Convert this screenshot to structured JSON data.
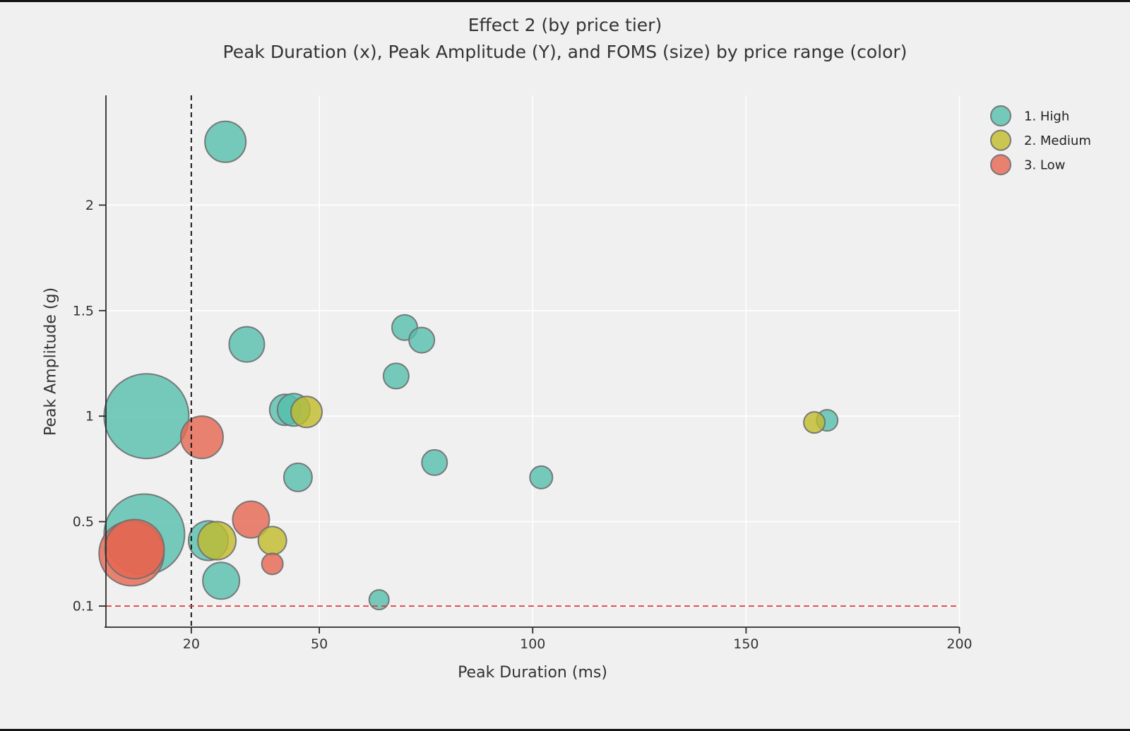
{
  "title": "Effect 2 (by price tier)",
  "subtitle": "Peak Duration (x), Peak Amplitude (Y), and FOMS (size) by price range (color)",
  "chart_data": {
    "type": "scatter",
    "variant": "bubble",
    "title": "Effect 2 (by price tier)",
    "subtitle": "Peak Duration (x), Peak Amplitude (Y), and FOMS (size) by price range (color)",
    "xlabel": "Peak Duration (ms)",
    "ylabel": "Peak Amplitude (g)",
    "size_dimension": "FOMS",
    "xlim": [
      0,
      200
    ],
    "ylim": [
      0,
      2.52
    ],
    "grid": true,
    "grid_color": "#ffffff",
    "legend_position": "top-right-outside",
    "x_ticks": [
      {
        "value": 20,
        "label": "20"
      },
      {
        "value": 50,
        "label": "50"
      },
      {
        "value": 100,
        "label": "100"
      },
      {
        "value": 150,
        "label": "150"
      },
      {
        "value": 200,
        "label": "200"
      }
    ],
    "y_ticks": [
      {
        "value": 0.1,
        "label": "0.1"
      },
      {
        "value": 0.5,
        "label": "0.5"
      },
      {
        "value": 1,
        "label": "1"
      },
      {
        "value": 1.5,
        "label": "1.5"
      },
      {
        "value": 2,
        "label": "2"
      }
    ],
    "reference_lines": [
      {
        "axis": "x",
        "value": 20,
        "style": "dashed",
        "color": "#111111",
        "name": "duration-threshold-line"
      },
      {
        "axis": "y",
        "value": 0.1,
        "style": "dashed",
        "color": "#e03b3b",
        "name": "amplitude-threshold-line"
      }
    ],
    "tiers": [
      {
        "name": "1. High",
        "color": "#55BFAC"
      },
      {
        "name": "2. Medium",
        "color": "#C2BB2A"
      },
      {
        "name": "3. Low",
        "color": "#E66550"
      }
    ],
    "bubble_stroke_color": "#6f6f6f",
    "points": [
      {
        "x": 9.5,
        "y": 1.0,
        "r": 60,
        "tier": 0
      },
      {
        "x": 22.5,
        "y": 0.9,
        "r": 30,
        "tier": 2
      },
      {
        "x": 9,
        "y": 0.44,
        "r": 57,
        "tier": 0
      },
      {
        "x": 6,
        "y": 0.35,
        "r": 46,
        "tier": 2
      },
      {
        "x": 6.7,
        "y": 0.37,
        "r": 42,
        "tier": 2
      },
      {
        "x": 28,
        "y": 2.3,
        "r": 29,
        "tier": 0
      },
      {
        "x": 33,
        "y": 1.34,
        "r": 25,
        "tier": 0
      },
      {
        "x": 70,
        "y": 1.42,
        "r": 18,
        "tier": 0
      },
      {
        "x": 74,
        "y": 1.36,
        "r": 18,
        "tier": 0
      },
      {
        "x": 68,
        "y": 1.19,
        "r": 18,
        "tier": 0
      },
      {
        "x": 42,
        "y": 1.03,
        "r": 22,
        "tier": 0
      },
      {
        "x": 44,
        "y": 1.03,
        "r": 23,
        "tier": 0
      },
      {
        "x": 47,
        "y": 1.02,
        "r": 22,
        "tier": 1
      },
      {
        "x": 169,
        "y": 0.98,
        "r": 15,
        "tier": 0
      },
      {
        "x": 166,
        "y": 0.97,
        "r": 15,
        "tier": 1
      },
      {
        "x": 77,
        "y": 0.78,
        "r": 18,
        "tier": 0
      },
      {
        "x": 45,
        "y": 0.71,
        "r": 20,
        "tier": 0
      },
      {
        "x": 102,
        "y": 0.71,
        "r": 16,
        "tier": 0
      },
      {
        "x": 34,
        "y": 0.51,
        "r": 26,
        "tier": 2
      },
      {
        "x": 24,
        "y": 0.41,
        "r": 28,
        "tier": 0
      },
      {
        "x": 26,
        "y": 0.41,
        "r": 27,
        "tier": 1
      },
      {
        "x": 39,
        "y": 0.41,
        "r": 20,
        "tier": 1
      },
      {
        "x": 39,
        "y": 0.3,
        "r": 15,
        "tier": 2
      },
      {
        "x": 27,
        "y": 0.22,
        "r": 26,
        "tier": 0
      },
      {
        "x": 64,
        "y": 0.13,
        "r": 14,
        "tier": 0
      }
    ]
  }
}
